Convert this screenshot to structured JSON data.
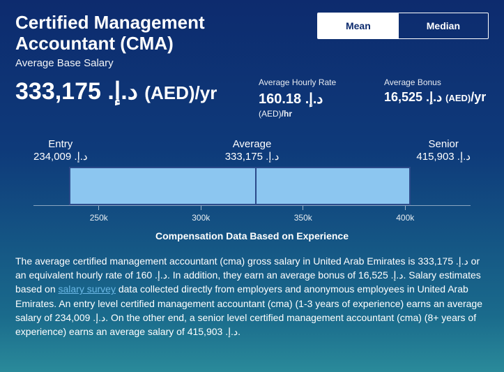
{
  "header": {
    "title": "Certified Management Accountant (CMA)",
    "subtitle": "Average Base Salary"
  },
  "tabs": {
    "mean": "Mean",
    "median": "Median"
  },
  "metrics": {
    "main": {
      "value": "333,175 .د.إ",
      "unit": "(AED)/yr"
    },
    "hourly": {
      "label": "Average Hourly Rate",
      "value": "160.18 .د.إ",
      "suffix": "(AED)/hr"
    },
    "bonus": {
      "label": "Average Bonus",
      "value": "16,525 .د.إ",
      "suffix": "(AED)/yr"
    }
  },
  "chart": {
    "type": "range-bar",
    "entry": {
      "label": "Entry",
      "value_text": "234,009 .د.إ",
      "value": 234009
    },
    "average": {
      "label": "Average",
      "value_text": "333,175 .د.إ",
      "value": 333175
    },
    "senior": {
      "label": "Senior",
      "value_text": "415,903 .د.إ",
      "value": 415903
    },
    "xlim": [
      218000,
      432000
    ],
    "ticks": [
      {
        "pos": 250000,
        "label": "250k"
      },
      {
        "pos": 300000,
        "label": "300k"
      },
      {
        "pos": 350000,
        "label": "350k"
      },
      {
        "pos": 400000,
        "label": "400k"
      }
    ],
    "bar_fill": "#8cc6f0",
    "bar_stroke": "#2b4a8a",
    "caption": "Compensation Data Based on Experience"
  },
  "description": {
    "text_before_link": "The average certified management accountant (cma) gross salary in United Arab Emirates is 333,175 .د.إ or an equivalent hourly rate of 160 .د.إ. In addition, they earn an average bonus of 16,525 .د.إ. Salary estimates based on ",
    "link_text": "salary survey",
    "text_after_link": " data collected directly from employers and anonymous employees in United Arab Emirates. An entry level certified management accountant (cma) (1-3 years of experience) earns an average salary of 234,009 .د.إ. On the other end, a senior level certified management accountant (cma) (8+ years of experience) earns an average salary of 415,903 .د.إ."
  }
}
